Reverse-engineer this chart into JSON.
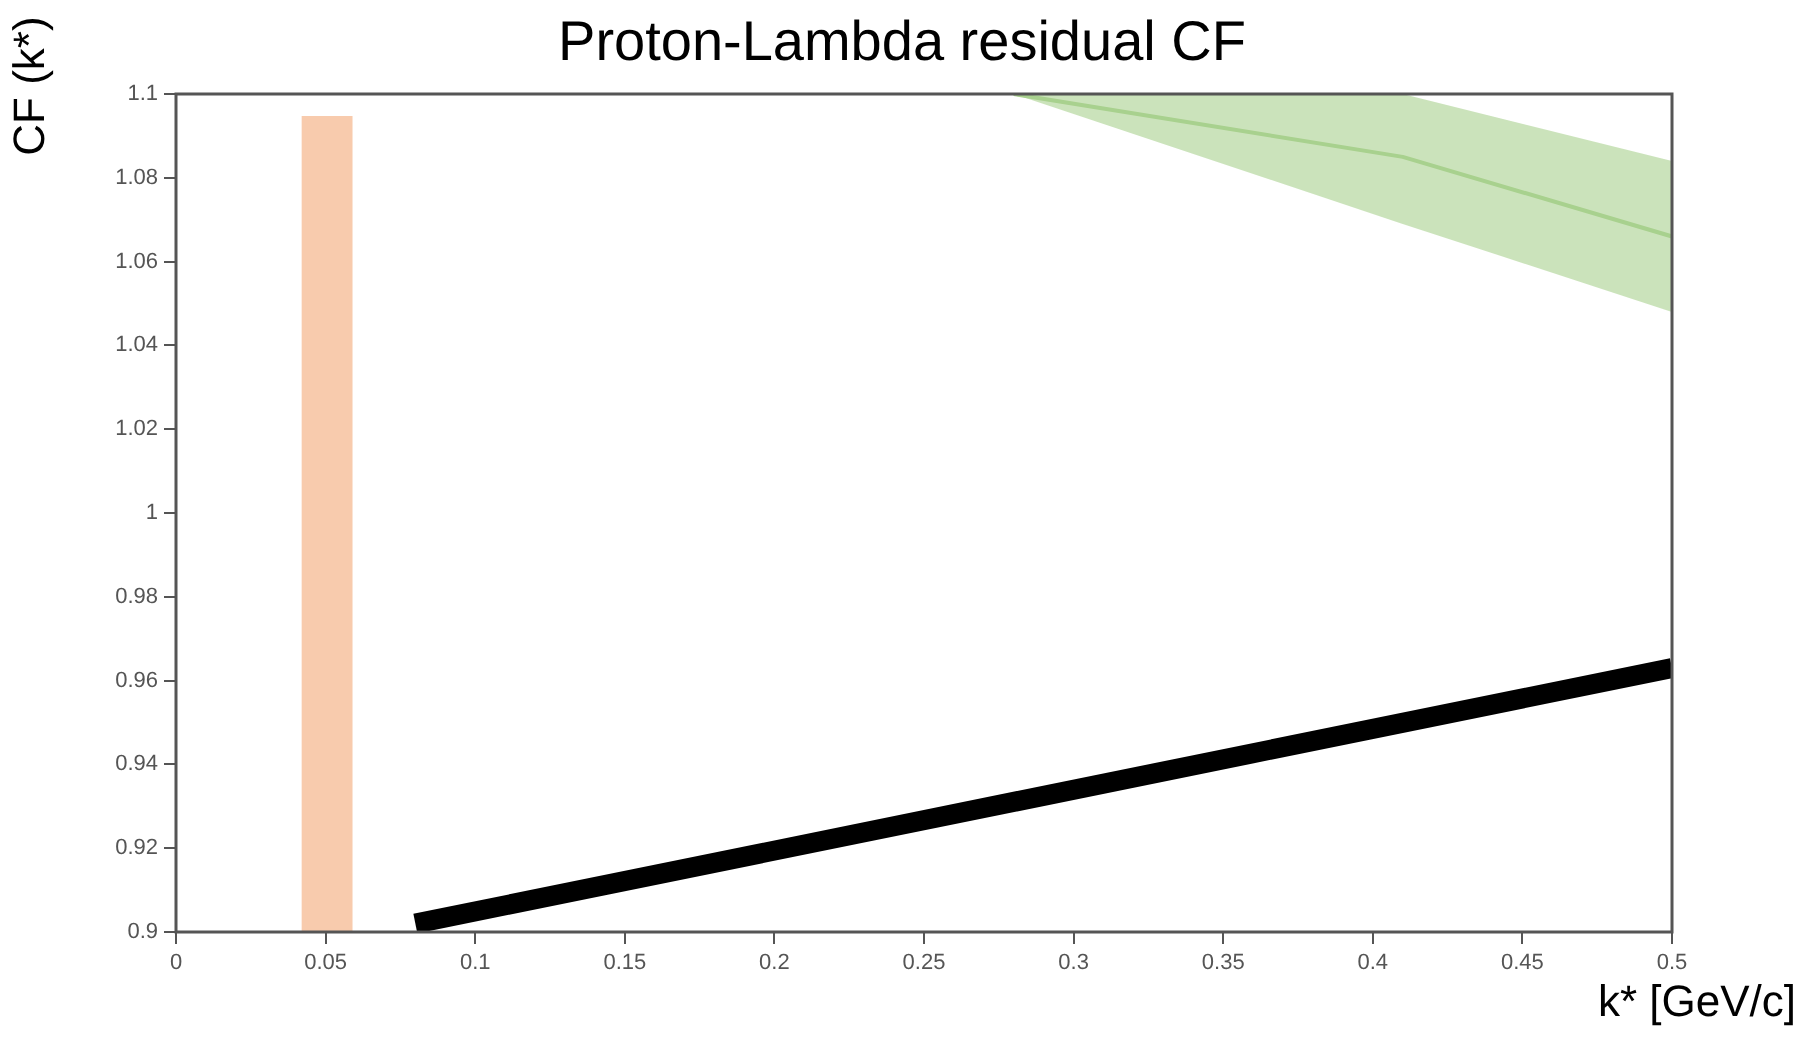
{
  "chart_data": {
    "type": "line",
    "title": "Proton-Lambda residual CF",
    "xlabel": "k* [GeV/c]",
    "ylabel": "CF (k*)",
    "series": [
      {
        "type": "line",
        "color": "#a9d18e",
        "x": [
          0.28,
          0.41,
          0.5
        ],
        "values": [
          1.1,
          1.085,
          1.066
        ],
        "lower": [
          1.1,
          1.069,
          1.048
        ],
        "upper": [
          1.1,
          1.1,
          1.084
        ]
      },
      {
        "type": "line",
        "color": "#000000",
        "x": [
          0.08,
          0.5
        ],
        "values": [
          0.902,
          0.963
        ]
      }
    ],
    "bands": [
      {
        "axis": "x",
        "from": 0.042,
        "to": 0.059,
        "color": "#f8cbad"
      }
    ],
    "xlim": [
      0,
      0.5
    ],
    "xticks": [
      0,
      0.05,
      0.1,
      0.15,
      0.2,
      0.25,
      0.3,
      0.35,
      0.4,
      0.45,
      0.5
    ],
    "ylim": [
      0.9,
      1.1
    ],
    "yticks": [
      0.9,
      0.92,
      0.94,
      0.96,
      0.98,
      1,
      1.02,
      1.04,
      1.06,
      1.08,
      1.1
    ],
    "grid": false,
    "legend": false,
    "line_style": "solid",
    "marker": "none"
  }
}
